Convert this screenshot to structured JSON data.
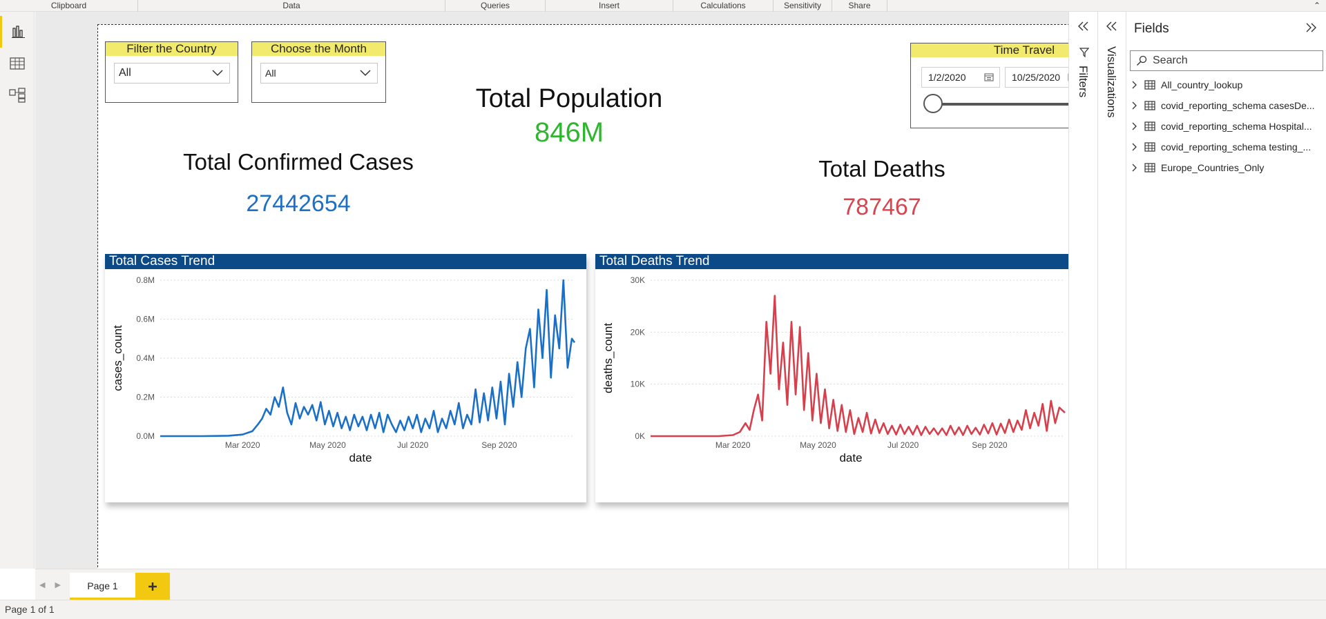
{
  "ribbon": {
    "groups": [
      "Clipboard",
      "Data",
      "Queries",
      "Insert",
      "Calculations",
      "Sensitivity",
      "Share"
    ]
  },
  "filters": {
    "country": {
      "header": "Filter the Country",
      "value": "All"
    },
    "month": {
      "header": "Choose the Month",
      "value": "All"
    }
  },
  "time_travel": {
    "header": "Time Travel",
    "start": "1/2/2020",
    "end": "10/25/2020"
  },
  "kpis": {
    "population": {
      "title": "Total Population",
      "value": "846M",
      "color": "#2fb52f"
    },
    "cases": {
      "title": "Total Confirmed Cases",
      "value": "27442654",
      "color": "#1f6fc4"
    },
    "deaths": {
      "title": "Total Deaths",
      "value": "787467",
      "color": "#d64550"
    }
  },
  "chart_data": [
    {
      "type": "line",
      "title": "Total Cases Trend",
      "xlabel": "date",
      "ylabel": "cases_count",
      "x_ticks": [
        "Mar 2020",
        "May 2020",
        "Jul 2020",
        "Sep 2020"
      ],
      "y_ticks": [
        "0.0M",
        "0.2M",
        "0.4M",
        "0.6M",
        "0.8M"
      ],
      "ylim": [
        0,
        800000
      ],
      "xlim": [
        "2020-01-02",
        "2020-10-25"
      ],
      "color": "#1a6fc7",
      "series": [
        {
          "x": [
            "2020-01-02",
            "2020-02-01",
            "2020-02-20",
            "2020-03-01",
            "2020-03-08",
            "2020-03-12",
            "2020-03-15",
            "2020-03-18",
            "2020-03-21",
            "2020-03-24",
            "2020-03-27",
            "2020-03-30",
            "2020-04-02",
            "2020-04-05",
            "2020-04-08",
            "2020-04-11",
            "2020-04-14",
            "2020-04-17",
            "2020-04-20",
            "2020-04-23",
            "2020-04-26",
            "2020-04-29",
            "2020-05-02",
            "2020-05-05",
            "2020-05-08",
            "2020-05-11",
            "2020-05-14",
            "2020-05-17",
            "2020-05-20",
            "2020-05-23",
            "2020-05-26",
            "2020-05-29",
            "2020-06-01",
            "2020-06-04",
            "2020-06-07",
            "2020-06-10",
            "2020-06-13",
            "2020-06-16",
            "2020-06-19",
            "2020-06-22",
            "2020-06-25",
            "2020-06-28",
            "2020-07-01",
            "2020-07-04",
            "2020-07-07",
            "2020-07-10",
            "2020-07-13",
            "2020-07-16",
            "2020-07-19",
            "2020-07-22",
            "2020-07-25",
            "2020-07-28",
            "2020-07-31",
            "2020-08-03",
            "2020-08-06",
            "2020-08-09",
            "2020-08-12",
            "2020-08-15",
            "2020-08-18",
            "2020-08-21",
            "2020-08-24",
            "2020-08-27",
            "2020-08-30",
            "2020-09-02",
            "2020-09-05",
            "2020-09-08",
            "2020-09-11",
            "2020-09-14",
            "2020-09-17",
            "2020-09-20",
            "2020-09-23",
            "2020-09-26",
            "2020-09-29",
            "2020-10-02",
            "2020-10-05",
            "2020-10-08",
            "2020-10-11",
            "2020-10-14",
            "2020-10-17",
            "2020-10-20",
            "2020-10-23",
            "2020-10-25"
          ],
          "values": [
            0,
            0,
            2000,
            8000,
            25000,
            60000,
            90000,
            140000,
            110000,
            200000,
            150000,
            250000,
            120000,
            60000,
            170000,
            90000,
            150000,
            110000,
            160000,
            80000,
            175000,
            60000,
            130000,
            50000,
            120000,
            40000,
            100000,
            30000,
            110000,
            50000,
            100000,
            30000,
            110000,
            40000,
            120000,
            20000,
            110000,
            60000,
            20000,
            80000,
            30000,
            100000,
            40000,
            110000,
            20000,
            90000,
            40000,
            130000,
            20000,
            90000,
            40000,
            130000,
            60000,
            170000,
            40000,
            110000,
            60000,
            240000,
            70000,
            220000,
            80000,
            250000,
            90000,
            280000,
            60000,
            320000,
            150000,
            380000,
            200000,
            450000,
            550000,
            250000,
            650000,
            400000,
            750000,
            300000,
            620000,
            450000,
            800000,
            350000,
            500000,
            480000
          ]
        }
      ]
    },
    {
      "type": "line",
      "title": "Total Deaths Trend",
      "xlabel": "date",
      "ylabel": "deaths_count",
      "x_ticks": [
        "Mar 2020",
        "May 2020",
        "Jul 2020",
        "Sep 2020"
      ],
      "y_ticks": [
        "0K",
        "10K",
        "20K",
        "30K"
      ],
      "ylim": [
        0,
        30000
      ],
      "xlim": [
        "2020-01-02",
        "2020-10-25"
      ],
      "color": "#d6404c",
      "series": [
        {
          "x": [
            "2020-01-02",
            "2020-02-01",
            "2020-02-20",
            "2020-03-01",
            "2020-03-06",
            "2020-03-10",
            "2020-03-13",
            "2020-03-16",
            "2020-03-19",
            "2020-03-22",
            "2020-03-25",
            "2020-03-28",
            "2020-03-31",
            "2020-04-03",
            "2020-04-06",
            "2020-04-09",
            "2020-04-12",
            "2020-04-15",
            "2020-04-18",
            "2020-04-21",
            "2020-04-24",
            "2020-04-27",
            "2020-04-30",
            "2020-05-03",
            "2020-05-06",
            "2020-05-09",
            "2020-05-12",
            "2020-05-15",
            "2020-05-18",
            "2020-05-21",
            "2020-05-24",
            "2020-05-27",
            "2020-05-30",
            "2020-06-02",
            "2020-06-05",
            "2020-06-08",
            "2020-06-11",
            "2020-06-14",
            "2020-06-17",
            "2020-06-20",
            "2020-06-23",
            "2020-06-26",
            "2020-06-29",
            "2020-07-02",
            "2020-07-05",
            "2020-07-08",
            "2020-07-11",
            "2020-07-14",
            "2020-07-17",
            "2020-07-20",
            "2020-07-23",
            "2020-07-26",
            "2020-07-29",
            "2020-08-01",
            "2020-08-04",
            "2020-08-07",
            "2020-08-10",
            "2020-08-13",
            "2020-08-16",
            "2020-08-19",
            "2020-08-22",
            "2020-08-25",
            "2020-08-28",
            "2020-08-31",
            "2020-09-03",
            "2020-09-06",
            "2020-09-09",
            "2020-09-12",
            "2020-09-15",
            "2020-09-18",
            "2020-09-21",
            "2020-09-24",
            "2020-09-27",
            "2020-09-30",
            "2020-10-03",
            "2020-10-06",
            "2020-10-09",
            "2020-10-12",
            "2020-10-15",
            "2020-10-18",
            "2020-10-21",
            "2020-10-25"
          ],
          "values": [
            0,
            0,
            0,
            200,
            800,
            2500,
            1200,
            5000,
            8000,
            3000,
            22000,
            12000,
            27000,
            9000,
            18000,
            6000,
            22000,
            8000,
            21000,
            5000,
            16000,
            3000,
            12000,
            2500,
            9000,
            1500,
            7000,
            1000,
            6000,
            800,
            5000,
            400,
            3500,
            800,
            4500,
            500,
            3200,
            600,
            2500,
            400,
            2000,
            300,
            2200,
            400,
            1800,
            300,
            2000,
            200,
            1800,
            400,
            1500,
            300,
            1500,
            200,
            2000,
            300,
            1700,
            200,
            2000,
            400,
            1600,
            300,
            2200,
            500,
            2500,
            300,
            2400,
            600,
            3200,
            800,
            3000,
            1200,
            5000,
            1500,
            4500,
            2000,
            6200,
            1000,
            6800,
            2500,
            5500,
            4500
          ]
        }
      ]
    }
  ],
  "fields_pane": {
    "title": "Fields",
    "search_placeholder": "Search",
    "items": [
      "All_country_lookup",
      "covid_reporting_schema casesDe...",
      "covid_reporting_schema Hospital...",
      "covid_reporting_schema testing_...",
      "Europe_Countries_Only"
    ]
  },
  "side_panes": {
    "filters": "Filters",
    "visualizations": "Visualizations"
  },
  "pages": {
    "tab": "Page 1"
  },
  "status": {
    "text": "Page 1 of 1"
  }
}
